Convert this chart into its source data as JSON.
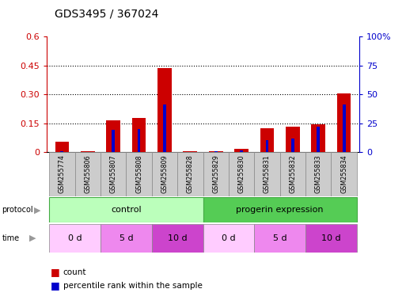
{
  "title": "GDS3495 / 367024",
  "samples": [
    "GSM255774",
    "GSM255806",
    "GSM255807",
    "GSM255808",
    "GSM255809",
    "GSM255828",
    "GSM255829",
    "GSM255830",
    "GSM255831",
    "GSM255832",
    "GSM255833",
    "GSM255834"
  ],
  "red_values": [
    0.055,
    0.005,
    0.165,
    0.175,
    0.435,
    0.003,
    0.003,
    0.018,
    0.125,
    0.13,
    0.145,
    0.305
  ],
  "blue_values_pct": [
    0.8,
    0.3,
    19.0,
    20.0,
    40.8,
    0.3,
    0.8,
    1.3,
    10.0,
    11.7,
    21.7,
    40.8
  ],
  "ylim_left": [
    0,
    0.6
  ],
  "ylim_right": [
    0,
    100
  ],
  "yticks_left": [
    0,
    0.15,
    0.3,
    0.45,
    0.6
  ],
  "yticks_right": [
    0,
    25,
    50,
    75,
    100
  ],
  "ytick_labels_left": [
    "0",
    "0.15",
    "0.30",
    "0.45",
    "0.6"
  ],
  "ytick_labels_right": [
    "0",
    "25",
    "50",
    "75",
    "100%"
  ],
  "left_axis_color": "#cc0000",
  "right_axis_color": "#0000cc",
  "bar_color_red": "#cc0000",
  "bar_color_blue": "#0000cc",
  "bar_width": 0.55,
  "blue_bar_width": 0.12,
  "bg_color": "#ffffff",
  "label_count": "count",
  "label_percentile": "percentile rank within the sample",
  "grid_yticks": [
    0.15,
    0.3,
    0.45
  ],
  "protocol_color_light": "#bbffbb",
  "protocol_color_dark": "#55cc55",
  "time_0d_color": "#ffccff",
  "time_5d_color": "#ee88ee",
  "time_10d_color": "#cc44cc",
  "sample_box_color": "#cccccc",
  "sample_box_edge": "#888888"
}
